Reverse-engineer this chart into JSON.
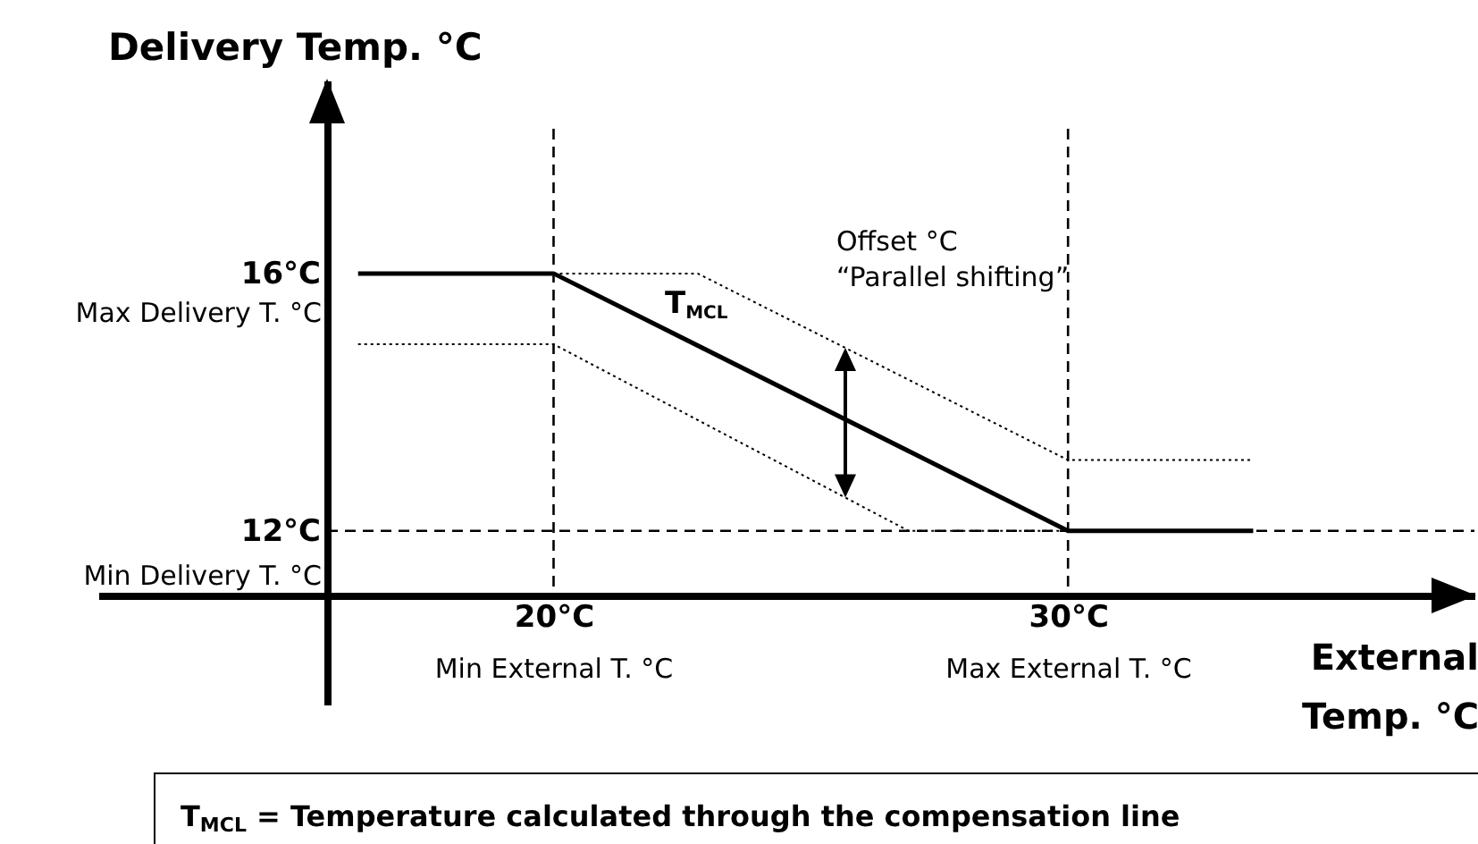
{
  "chart_data": {
    "type": "line",
    "xlabel": "External Temp. °C",
    "ylabel": "Delivery Temp. °C",
    "xlim": [
      11.15,
      37.9
    ],
    "ylim": [
      9.3,
      19
    ],
    "xticks": [
      {
        "value": 20,
        "label": "20°C"
      },
      {
        "value": 30,
        "label": "30°C"
      }
    ],
    "yticks": [
      {
        "value": 12,
        "label": "12°C"
      },
      {
        "value": 16,
        "label": "16°C"
      }
    ],
    "series": [
      {
        "color": "#000000",
        "line_style": "solid",
        "x": [
          16.2,
          20,
          30,
          33.6
        ],
        "values": [
          16,
          16,
          12,
          12
        ]
      },
      {
        "color": "#000000",
        "line_style": "dotted",
        "x": [
          20,
          22.8,
          30,
          33.6
        ],
        "values": [
          16,
          16,
          13.1,
          13.1
        ]
      },
      {
        "color": "#000000",
        "line_style": "dotted",
        "x": [
          16.2,
          20,
          26.9,
          30
        ],
        "values": [
          14.9,
          14.9,
          12,
          12
        ]
      }
    ],
    "ref_lines": [
      {
        "axis": "x",
        "value": 20,
        "color": "#000000",
        "line_style": "dashed"
      },
      {
        "axis": "x",
        "value": 30,
        "color": "#000000",
        "line_style": "dashed"
      },
      {
        "axis": "y",
        "value": 12,
        "color": "#000000",
        "line_style": "dashed"
      }
    ],
    "annotations": [
      "Max Delivery T. °C",
      "Min Delivery T. °C",
      "Min External T. °C",
      "Max External T. °C",
      "T$_{MCL}$",
      "Offset °C",
      "“Parallel shifting”",
      "T$_{MCL}$  = Temperature calculated through the compensation line"
    ],
    "grid": false
  }
}
